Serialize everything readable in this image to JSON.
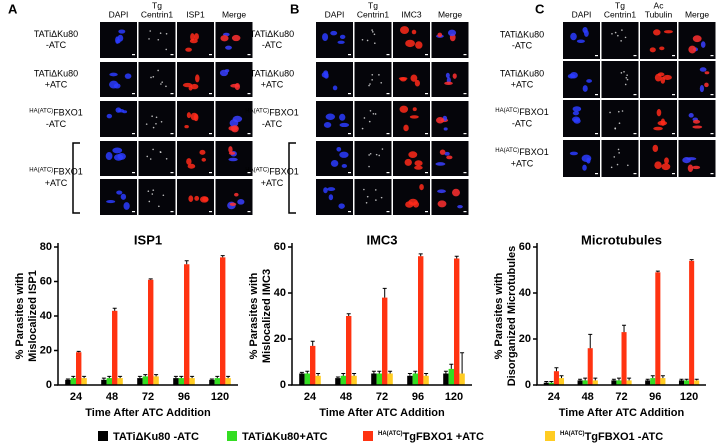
{
  "panels": [
    {
      "label": "A",
      "columns": [
        [
          "DAPI"
        ],
        [
          "Tg",
          "Centrin1"
        ],
        [
          "ISP1"
        ],
        [
          "Merge"
        ]
      ],
      "rows": [
        {
          "label": [
            "TATiΔKu80",
            "-ATC"
          ]
        },
        {
          "label": [
            "TATiΔKu80",
            "+ATC"
          ]
        },
        {
          "sup": "HA(ATC)",
          "label": [
            "FBXO1",
            "-ATC"
          ]
        },
        {
          "sup": "HA(ATC)",
          "label": [
            "FBXO1",
            "+ATC"
          ]
        }
      ]
    },
    {
      "label": "B",
      "columns": [
        [
          "DAPI"
        ],
        [
          "Tg",
          "Centrin1"
        ],
        [
          "IMC3"
        ],
        [
          "Merge"
        ]
      ],
      "rows": [
        {
          "label": [
            "TATiΔKu80",
            "-ATC"
          ]
        },
        {
          "label": [
            "TATiΔKu80",
            "+ATC"
          ]
        },
        {
          "sup": "HA(ATC)",
          "label": [
            "FBXO1",
            "-ATC"
          ]
        },
        {
          "sup": "HA(ATC)",
          "label": [
            "FBXO1",
            "+ATC"
          ]
        }
      ]
    },
    {
      "label": "C",
      "columns": [
        [
          "DAPI"
        ],
        [
          "Tg",
          "Centrin1"
        ],
        [
          "Ac",
          "Tubulin"
        ],
        [
          "Merge"
        ]
      ],
      "rows": [
        {
          "label": [
            "TATiΔKu80",
            "-ATC"
          ]
        },
        {
          "label": [
            "TATiΔKu80",
            "+ATC"
          ]
        },
        {
          "sup": "HA(ATC)",
          "label": [
            "FBXO1",
            "-ATC"
          ]
        },
        {
          "sup": "HA(ATC)",
          "label": [
            "FBXO1",
            "+ATC"
          ]
        }
      ]
    }
  ],
  "legend": {
    "items": [
      {
        "name": "TATiΔKu80 -ATC",
        "color": "#000000"
      },
      {
        "name": "TATiΔKu80+ATC",
        "color": "#33dd22"
      },
      {
        "name": "TgFBXO1 +ATC",
        "sup": "HA(ATC)",
        "color": "#ff3311"
      },
      {
        "name": "TgFBXO1 -ATC",
        "sup": "HA(ATC)",
        "color": "#ffcc22"
      }
    ]
  },
  "chart_data": [
    {
      "type": "bar",
      "title": "ISP1",
      "y_label": [
        "% Parasites with",
        "Mislocalized ISP1"
      ],
      "x_label": "Time After ATC Addition",
      "categories": [
        "24",
        "48",
        "72",
        "96",
        "120"
      ],
      "ylim": [
        0,
        80
      ],
      "yticks": [
        0,
        20,
        40,
        60,
        80
      ],
      "series": [
        {
          "values": [
            3,
            3,
            4,
            4,
            3
          ],
          "errors": [
            0.5,
            1,
            1,
            1,
            0.5
          ]
        },
        {
          "values": [
            4,
            4,
            5,
            4,
            4
          ],
          "errors": [
            1,
            1,
            1,
            1,
            1
          ]
        },
        {
          "values": [
            19,
            43,
            61,
            70,
            74
          ],
          "errors": [
            0.5,
            1.5,
            0.5,
            2,
            1
          ]
        },
        {
          "values": [
            4,
            4,
            5,
            4,
            4
          ],
          "errors": [
            1,
            1,
            1,
            1,
            1
          ]
        }
      ]
    },
    {
      "type": "bar",
      "title": "IMC3",
      "y_label": [
        "% Parasites with",
        "Mislocalized IMC3"
      ],
      "x_label": "Time After ATC Addition",
      "categories": [
        "24",
        "48",
        "72",
        "96",
        "120"
      ],
      "ylim": [
        0,
        60
      ],
      "yticks": [
        0,
        20,
        40,
        60
      ],
      "series": [
        {
          "values": [
            5,
            3,
            5,
            4,
            5
          ],
          "errors": [
            0.5,
            0.5,
            1,
            1,
            1
          ]
        },
        {
          "values": [
            5,
            4,
            5,
            5,
            7
          ],
          "errors": [
            1,
            1,
            1,
            1,
            2
          ]
        },
        {
          "values": [
            17,
            30,
            38,
            56,
            55
          ],
          "errors": [
            2,
            1,
            4,
            1,
            1
          ]
        },
        {
          "values": [
            4,
            4,
            5,
            4,
            5
          ],
          "errors": [
            1,
            1,
            1,
            1,
            9
          ]
        }
      ]
    },
    {
      "type": "bar",
      "title": "Microtubules",
      "y_label": [
        "% Parasites with",
        "Disorganized Microtubules"
      ],
      "x_label": "Time After ATC Addition",
      "categories": [
        "24",
        "48",
        "72",
        "96",
        "120"
      ],
      "ylim": [
        0,
        60
      ],
      "yticks": [
        0,
        20,
        40,
        60
      ],
      "series": [
        {
          "values": [
            1,
            2,
            2,
            2,
            2
          ],
          "errors": [
            0.5,
            0.5,
            0.5,
            0.5,
            0.5
          ]
        },
        {
          "values": [
            1,
            2,
            2,
            3,
            2
          ],
          "errors": [
            0.5,
            1,
            1,
            1,
            0.5
          ]
        },
        {
          "values": [
            6,
            16,
            23,
            49,
            54
          ],
          "errors": [
            1.5,
            6,
            3,
            0.5,
            0.5
          ]
        },
        {
          "values": [
            3,
            2,
            2,
            3,
            2
          ],
          "errors": [
            1,
            1,
            1,
            1,
            0.5
          ]
        }
      ]
    }
  ]
}
